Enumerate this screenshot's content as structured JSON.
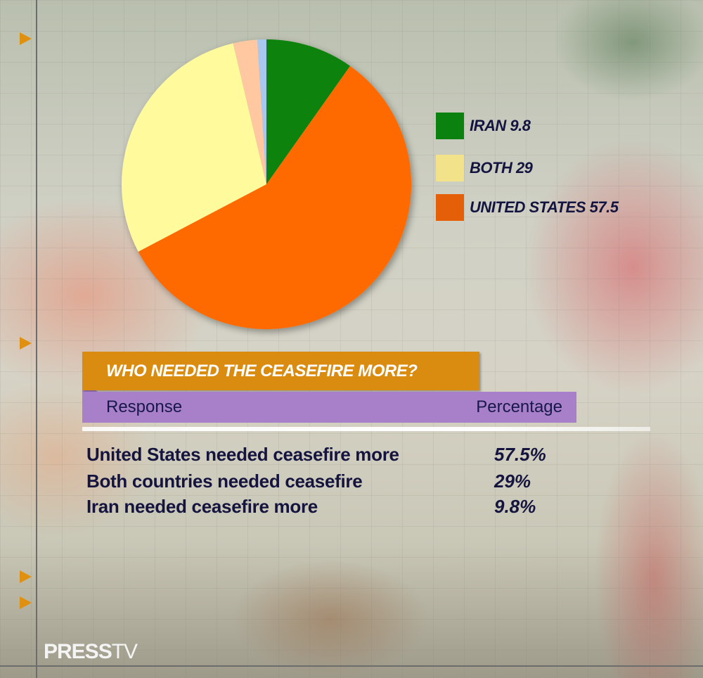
{
  "chart_data": {
    "type": "pie",
    "title": "WHO NEEDED THE CEASEFIRE MORE?",
    "slices": [
      {
        "label": "IRAN",
        "value": 9.8,
        "color": "#0b8210"
      },
      {
        "label": "UNITED STATES",
        "value": 57.5,
        "color": "#ff6a00"
      },
      {
        "label": "BOTH",
        "value": 29,
        "color": "#fffa9c"
      },
      {
        "label": "",
        "value": 2.7,
        "color": "#ffc8a0"
      },
      {
        "label": "",
        "value": 1.0,
        "color": "#a8c8f0"
      }
    ],
    "legend": [
      {
        "text": "IRAN 9.8",
        "color": "#0b8210"
      },
      {
        "text": "BOTH 29",
        "color": "#f2e28a"
      },
      {
        "text": "UNITED STATES 57.5",
        "color": "#e55e08"
      }
    ],
    "legend_position": "right"
  },
  "table": {
    "headers": {
      "response": "Response",
      "percentage": "Percentage"
    },
    "rows": [
      {
        "response": "United States needed ceasefire more",
        "percentage": "57.5%"
      },
      {
        "response": "Both countries needed ceasefire",
        "percentage": "29%"
      },
      {
        "response": "Iran needed ceasefire more",
        "percentage": "9.8%"
      }
    ]
  },
  "logo": {
    "press": "PRESS",
    "tv": "TV"
  }
}
